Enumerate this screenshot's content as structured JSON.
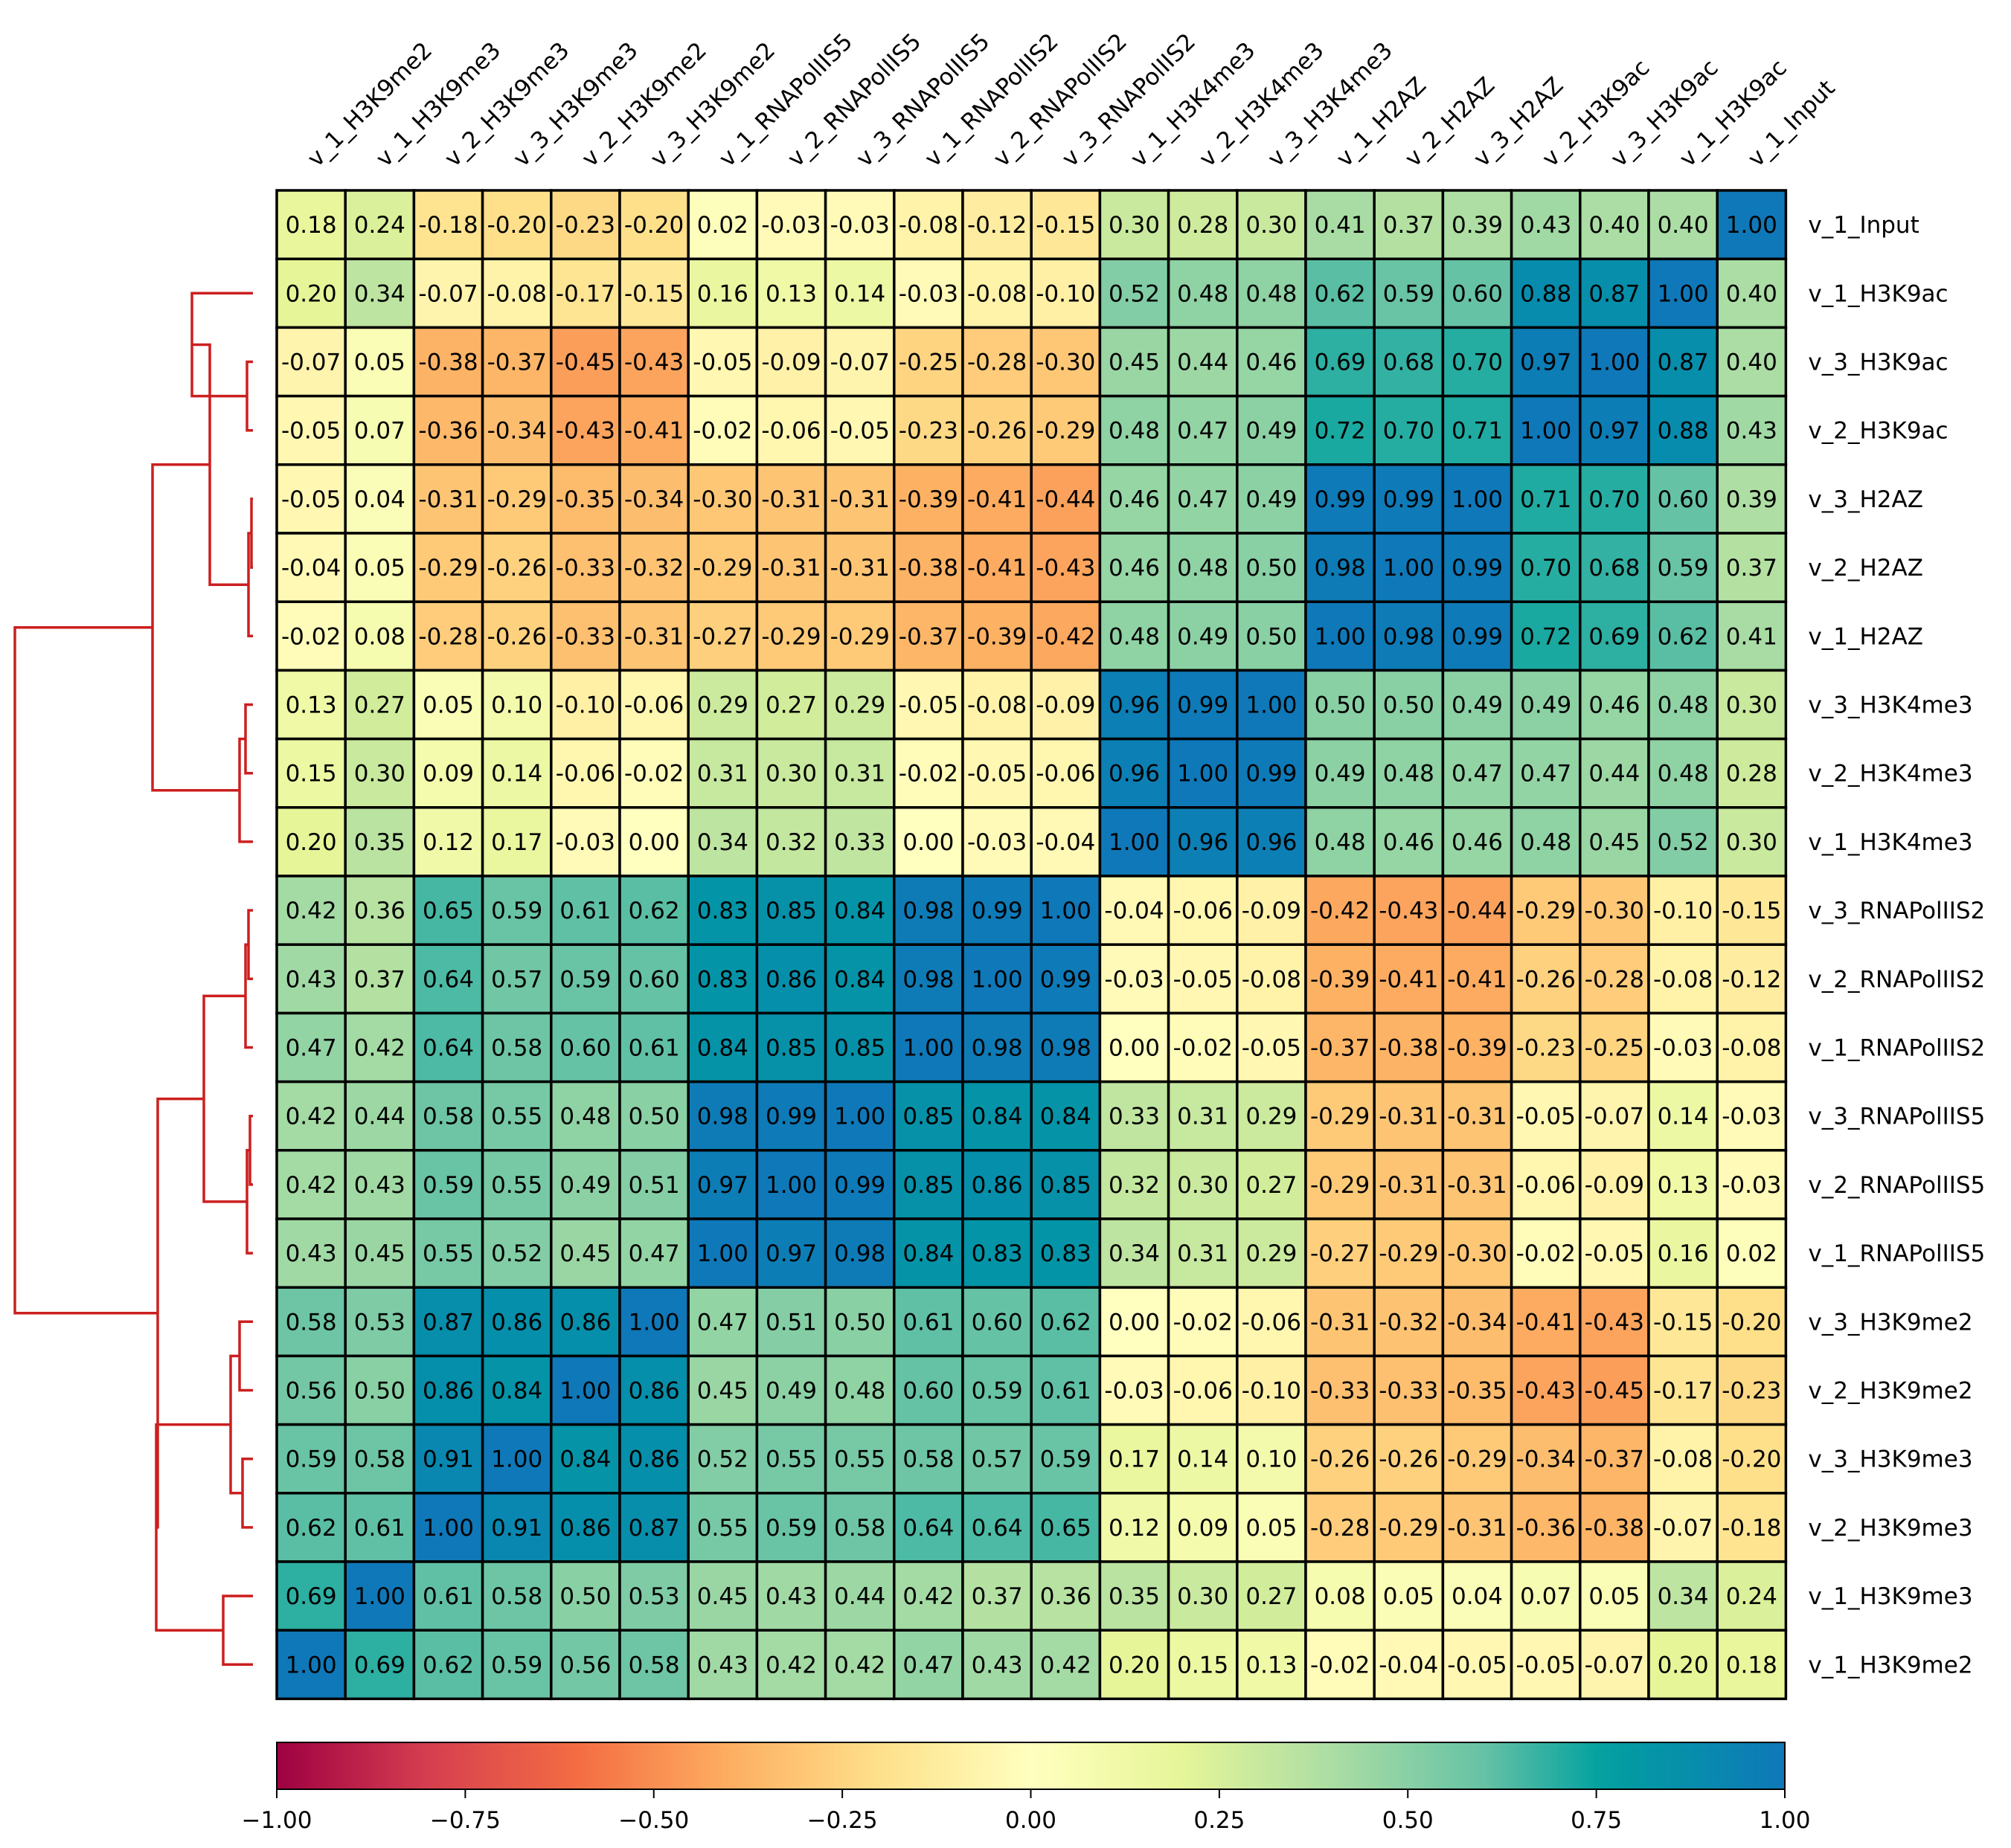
{
  "chart_data": {
    "type": "heatmap",
    "title": "",
    "columns": [
      "v_1_H3K9me2",
      "v_1_H3K9me3",
      "v_2_H3K9me3",
      "v_3_H3K9me3",
      "v_2_H3K9me2",
      "v_3_H3K9me2",
      "v_1_RNAPolIIS5",
      "v_2_RNAPolIIS5",
      "v_3_RNAPolIIS5",
      "v_1_RNAPolIIS2",
      "v_2_RNAPolIIS2",
      "v_3_RNAPolIIS2",
      "v_1_H3K4me3",
      "v_2_H3K4me3",
      "v_3_H3K4me3",
      "v_1_H2AZ",
      "v_2_H2AZ",
      "v_3_H2AZ",
      "v_2_H3K9ac",
      "v_3_H3K9ac",
      "v_1_H3K9ac",
      "v_1_Input"
    ],
    "rows": [
      "v_1_Input",
      "v_1_H3K9ac",
      "v_3_H3K9ac",
      "v_2_H3K9ac",
      "v_3_H2AZ",
      "v_2_H2AZ",
      "v_1_H2AZ",
      "v_3_H3K4me3",
      "v_2_H3K4me3",
      "v_1_H3K4me3",
      "v_3_RNAPolIIS2",
      "v_2_RNAPolIIS2",
      "v_1_RNAPolIIS2",
      "v_3_RNAPolIIS5",
      "v_2_RNAPolIIS5",
      "v_1_RNAPolIIS5",
      "v_3_H3K9me2",
      "v_2_H3K9me2",
      "v_3_H3K9me3",
      "v_2_H3K9me3",
      "v_1_H3K9me3",
      "v_1_H3K9me2"
    ],
    "values": [
      [
        0.18,
        0.24,
        -0.18,
        -0.2,
        -0.23,
        -0.2,
        0.02,
        -0.03,
        -0.03,
        -0.08,
        -0.12,
        -0.15,
        0.3,
        0.28,
        0.3,
        0.41,
        0.37,
        0.39,
        0.43,
        0.4,
        0.4,
        1.0
      ],
      [
        0.2,
        0.34,
        -0.07,
        -0.08,
        -0.17,
        -0.15,
        0.16,
        0.13,
        0.14,
        -0.03,
        -0.08,
        -0.1,
        0.52,
        0.48,
        0.48,
        0.62,
        0.59,
        0.6,
        0.88,
        0.87,
        1.0,
        0.4
      ],
      [
        -0.07,
        0.05,
        -0.38,
        -0.37,
        -0.45,
        -0.43,
        -0.05,
        -0.09,
        -0.07,
        -0.25,
        -0.28,
        -0.3,
        0.45,
        0.44,
        0.46,
        0.69,
        0.68,
        0.7,
        0.97,
        1.0,
        0.87,
        0.4
      ],
      [
        -0.05,
        0.07,
        -0.36,
        -0.34,
        -0.43,
        -0.41,
        -0.02,
        -0.06,
        -0.05,
        -0.23,
        -0.26,
        -0.29,
        0.48,
        0.47,
        0.49,
        0.72,
        0.7,
        0.71,
        1.0,
        0.97,
        0.88,
        0.43
      ],
      [
        -0.05,
        0.04,
        -0.31,
        -0.29,
        -0.35,
        -0.34,
        -0.3,
        -0.31,
        -0.31,
        -0.39,
        -0.41,
        -0.44,
        0.46,
        0.47,
        0.49,
        0.99,
        0.99,
        1.0,
        0.71,
        0.7,
        0.6,
        0.39
      ],
      [
        -0.04,
        0.05,
        -0.29,
        -0.26,
        -0.33,
        -0.32,
        -0.29,
        -0.31,
        -0.31,
        -0.38,
        -0.41,
        -0.43,
        0.46,
        0.48,
        0.5,
        0.98,
        1.0,
        0.99,
        0.7,
        0.68,
        0.59,
        0.37
      ],
      [
        -0.02,
        0.08,
        -0.28,
        -0.26,
        -0.33,
        -0.31,
        -0.27,
        -0.29,
        -0.29,
        -0.37,
        -0.39,
        -0.42,
        0.48,
        0.49,
        0.5,
        1.0,
        0.98,
        0.99,
        0.72,
        0.69,
        0.62,
        0.41
      ],
      [
        0.13,
        0.27,
        0.05,
        0.1,
        -0.1,
        -0.06,
        0.29,
        0.27,
        0.29,
        -0.05,
        -0.08,
        -0.09,
        0.96,
        0.99,
        1.0,
        0.5,
        0.5,
        0.49,
        0.49,
        0.46,
        0.48,
        0.3
      ],
      [
        0.15,
        0.3,
        0.09,
        0.14,
        -0.06,
        -0.02,
        0.31,
        0.3,
        0.31,
        -0.02,
        -0.05,
        -0.06,
        0.96,
        1.0,
        0.99,
        0.49,
        0.48,
        0.47,
        0.47,
        0.44,
        0.48,
        0.28
      ],
      [
        0.2,
        0.35,
        0.12,
        0.17,
        -0.03,
        0.0,
        0.34,
        0.32,
        0.33,
        0.0,
        -0.03,
        -0.04,
        1.0,
        0.96,
        0.96,
        0.48,
        0.46,
        0.46,
        0.48,
        0.45,
        0.52,
        0.3
      ],
      [
        0.42,
        0.36,
        0.65,
        0.59,
        0.61,
        0.62,
        0.83,
        0.85,
        0.84,
        0.98,
        0.99,
        1.0,
        -0.04,
        -0.06,
        -0.09,
        -0.42,
        -0.43,
        -0.44,
        -0.29,
        -0.3,
        -0.1,
        -0.15
      ],
      [
        0.43,
        0.37,
        0.64,
        0.57,
        0.59,
        0.6,
        0.83,
        0.86,
        0.84,
        0.98,
        1.0,
        0.99,
        -0.03,
        -0.05,
        -0.08,
        -0.39,
        -0.41,
        -0.41,
        -0.26,
        -0.28,
        -0.08,
        -0.12
      ],
      [
        0.47,
        0.42,
        0.64,
        0.58,
        0.6,
        0.61,
        0.84,
        0.85,
        0.85,
        1.0,
        0.98,
        0.98,
        0.0,
        -0.02,
        -0.05,
        -0.37,
        -0.38,
        -0.39,
        -0.23,
        -0.25,
        -0.03,
        -0.08
      ],
      [
        0.42,
        0.44,
        0.58,
        0.55,
        0.48,
        0.5,
        0.98,
        0.99,
        1.0,
        0.85,
        0.84,
        0.84,
        0.33,
        0.31,
        0.29,
        -0.29,
        -0.31,
        -0.31,
        -0.05,
        -0.07,
        0.14,
        -0.03
      ],
      [
        0.42,
        0.43,
        0.59,
        0.55,
        0.49,
        0.51,
        0.97,
        1.0,
        0.99,
        0.85,
        0.86,
        0.85,
        0.32,
        0.3,
        0.27,
        -0.29,
        -0.31,
        -0.31,
        -0.06,
        -0.09,
        0.13,
        -0.03
      ],
      [
        0.43,
        0.45,
        0.55,
        0.52,
        0.45,
        0.47,
        1.0,
        0.97,
        0.98,
        0.84,
        0.83,
        0.83,
        0.34,
        0.31,
        0.29,
        -0.27,
        -0.29,
        -0.3,
        -0.02,
        -0.05,
        0.16,
        0.02
      ],
      [
        0.58,
        0.53,
        0.87,
        0.86,
        0.86,
        1.0,
        0.47,
        0.51,
        0.5,
        0.61,
        0.6,
        0.62,
        0.0,
        -0.02,
        -0.06,
        -0.31,
        -0.32,
        -0.34,
        -0.41,
        -0.43,
        -0.15,
        -0.2
      ],
      [
        0.56,
        0.5,
        0.86,
        0.84,
        1.0,
        0.86,
        0.45,
        0.49,
        0.48,
        0.6,
        0.59,
        0.61,
        -0.03,
        -0.06,
        -0.1,
        -0.33,
        -0.33,
        -0.35,
        -0.43,
        -0.45,
        -0.17,
        -0.23
      ],
      [
        0.59,
        0.58,
        0.91,
        1.0,
        0.84,
        0.86,
        0.52,
        0.55,
        0.55,
        0.58,
        0.57,
        0.59,
        0.17,
        0.14,
        0.1,
        -0.26,
        -0.26,
        -0.29,
        -0.34,
        -0.37,
        -0.08,
        -0.2
      ],
      [
        0.62,
        0.61,
        1.0,
        0.91,
        0.86,
        0.87,
        0.55,
        0.59,
        0.58,
        0.64,
        0.64,
        0.65,
        0.12,
        0.09,
        0.05,
        -0.28,
        -0.29,
        -0.31,
        -0.36,
        -0.38,
        -0.07,
        -0.18
      ],
      [
        0.69,
        1.0,
        0.61,
        0.58,
        0.5,
        0.53,
        0.45,
        0.43,
        0.44,
        0.42,
        0.37,
        0.36,
        0.35,
        0.3,
        0.27,
        0.08,
        0.05,
        0.04,
        0.07,
        0.05,
        0.34,
        0.24
      ],
      [
        1.0,
        0.69,
        0.62,
        0.59,
        0.56,
        0.58,
        0.43,
        0.42,
        0.42,
        0.47,
        0.43,
        0.42,
        0.2,
        0.15,
        0.13,
        -0.02,
        -0.04,
        -0.05,
        -0.05,
        -0.07,
        0.2,
        0.18
      ]
    ],
    "value_range": [
      -1.0,
      1.0
    ],
    "colormap": "Spectral",
    "colorbar": {
      "orientation": "horizontal",
      "ticks": [
        -1.0,
        -0.75,
        -0.5,
        -0.25,
        0.0,
        0.25,
        0.5,
        0.75,
        1.0
      ],
      "tick_labels": [
        "−1.00",
        "−0.75",
        "−0.50",
        "−0.25",
        "0.00",
        "0.25",
        "0.50",
        "0.75",
        "1.00"
      ]
    },
    "dendrogram": {
      "side": "left",
      "color": "#cc1f1f"
    }
  }
}
